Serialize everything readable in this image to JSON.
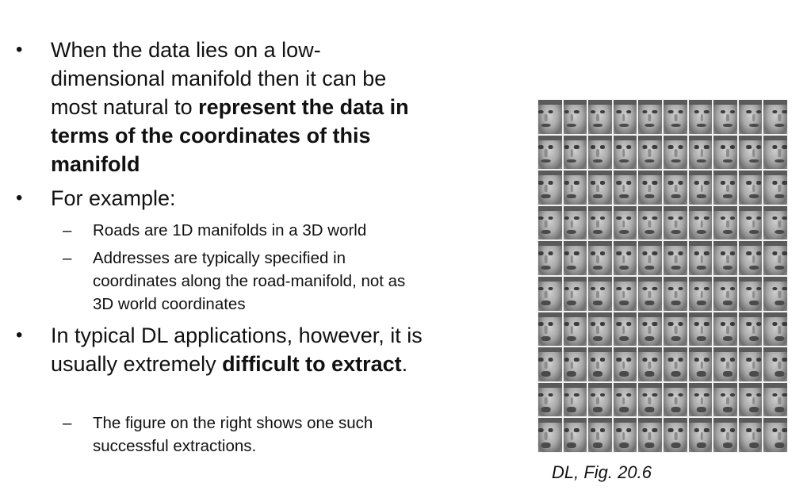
{
  "bullets": {
    "b1": {
      "marker": "•",
      "text_plain": "When the data lies on a low-dimensional manifold then it can be most natural to ",
      "text_bold": "represent the data in terms of the coordinates of this manifold"
    },
    "b2": {
      "marker": "•",
      "text": "For example:",
      "sub": [
        {
          "marker": "–",
          "text": "Roads are 1D manifolds in a 3D world"
        },
        {
          "marker": "–",
          "text": "Addresses are typically specified in coordinates along the road-manifold, not as 3D world coordinates"
        }
      ]
    },
    "b3": {
      "marker": "•",
      "text_plain": "In typical DL applications, however, it is usually extremely ",
      "text_bold": "difficult to extract",
      "text_end": ".",
      "sub": [
        {
          "marker": "–",
          "text": "The figure on the right shows one such successful extractions."
        }
      ]
    }
  },
  "figure": {
    "caption": "DL, Fig. 20.6",
    "grid_rows": 10,
    "grid_cols": 10
  }
}
